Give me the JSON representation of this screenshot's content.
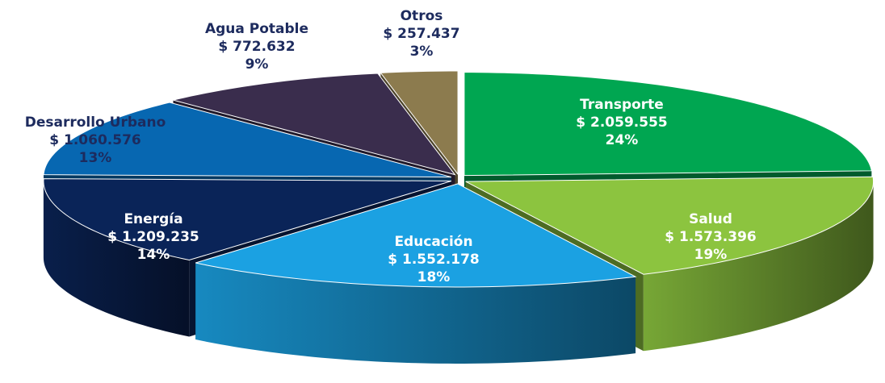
{
  "chart_data": {
    "type": "pie",
    "categories": [
      "Transporte",
      "Salud",
      "Educación",
      "Energía",
      "Desarrollo Urbano",
      "Agua Potable",
      "Otros"
    ],
    "values": [
      2059555,
      1573396,
      1552178,
      1209235,
      1060576,
      772632,
      257437
    ],
    "value_labels": [
      "$ 2.059.555",
      "$ 1.573.396",
      "$ 1.552.178",
      "$ 1.209.235",
      "$ 1.060.576",
      "$ 772.632",
      "$ 257.437"
    ],
    "percent_labels": [
      "24%",
      "19%",
      "18%",
      "14%",
      "13%",
      "9%",
      "3%"
    ],
    "colors": [
      "#00a651",
      "#8cc43f",
      "#1ba1e2",
      "#0a2458",
      "#0767b1",
      "#3a2d4d",
      "#8c7b4e"
    ]
  }
}
